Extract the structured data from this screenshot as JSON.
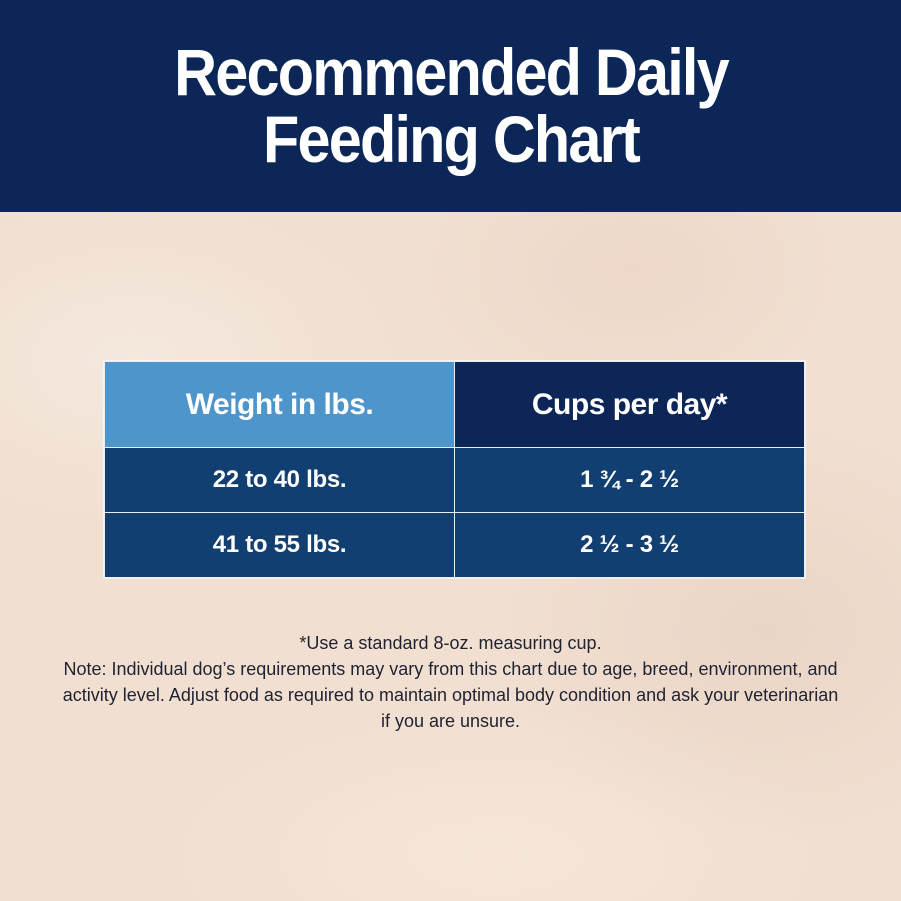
{
  "header": {
    "title": "Recommended Daily Feeding Chart",
    "background_color": "#0c2657"
  },
  "table": {
    "columns": [
      "Weight in lbs.",
      "Cups per day*"
    ],
    "rows": [
      [
        "22 to 40 lbs.",
        "1 ¾ - 2 ½"
      ],
      [
        "41 to 55 lbs.",
        "2 ½ - 3 ½"
      ]
    ],
    "header_colors": [
      "#4d95cb",
      "#0c2657"
    ],
    "row_color": "#123f72"
  },
  "notes": {
    "footnote": "*Use a standard 8-oz. measuring cup.",
    "note": "Note: Individual dog’s requirements may vary from this chart due to age, breed, environment, and activity level. Adjust food as required to maintain optimal body condition and ask your veterinarian if you are unsure."
  }
}
